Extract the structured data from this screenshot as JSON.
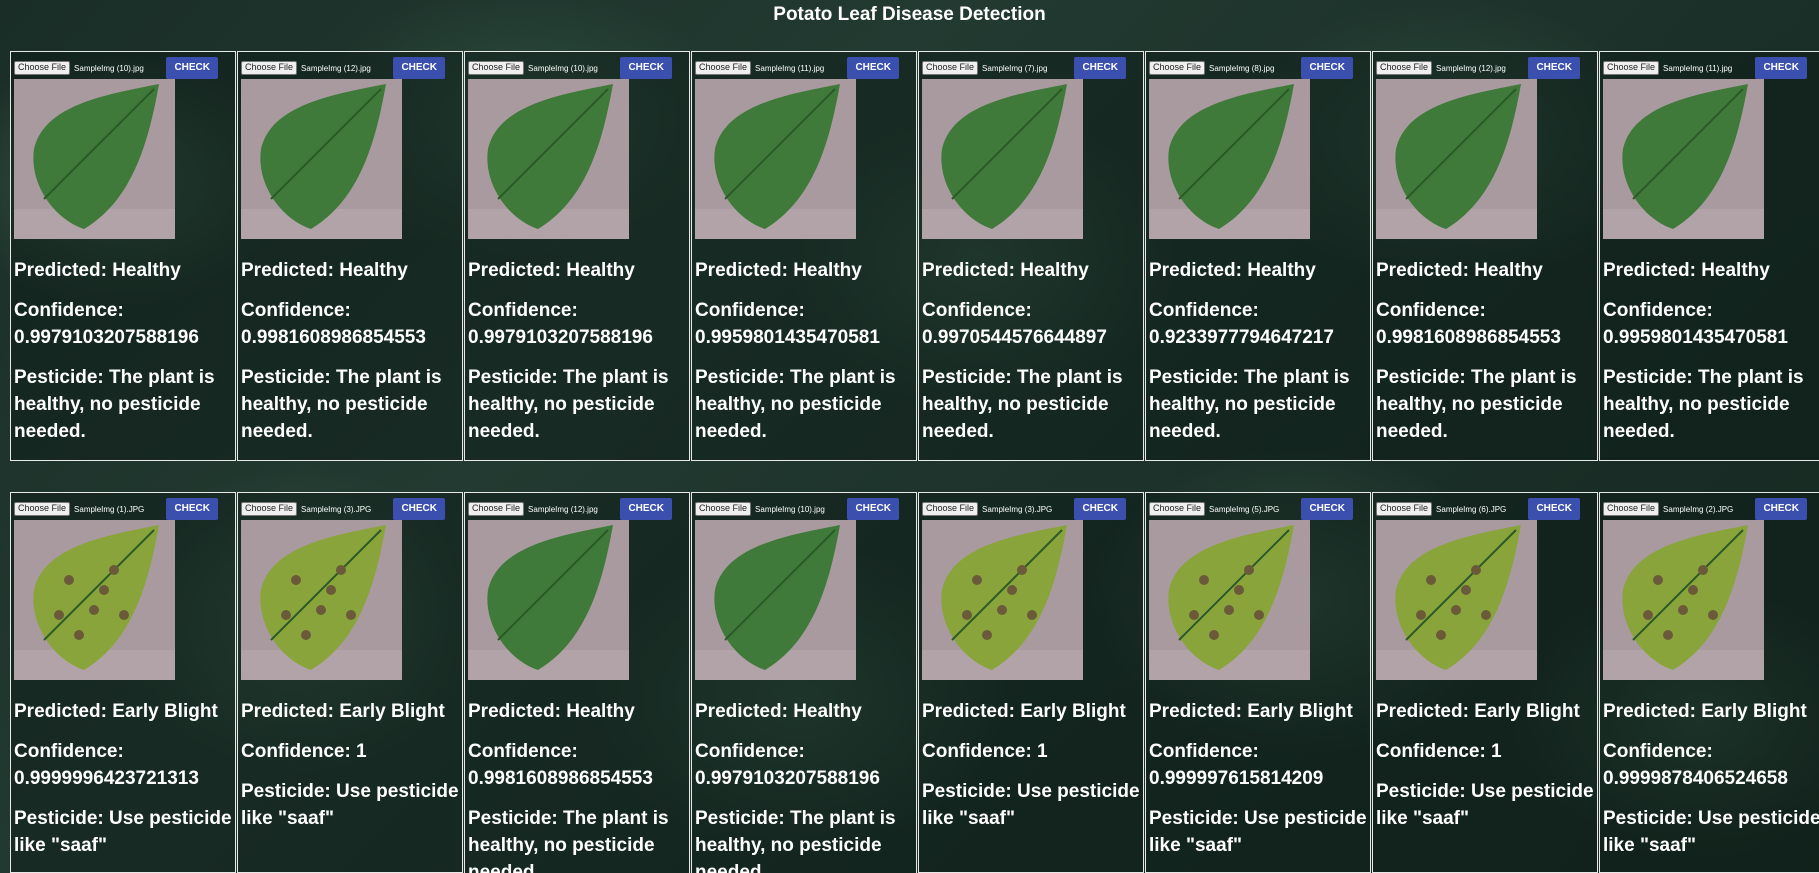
{
  "page_title": "Potato Leaf Disease Detection",
  "controls": {
    "choose_file_label": "Choose File",
    "check_label": "CHECK"
  },
  "labels": {
    "predicted_prefix": "Predicted: ",
    "confidence_prefix": "Confidence: ",
    "pesticide_prefix": "Pesticide: "
  },
  "colors": {
    "check_button": "#3a4fae",
    "healthy_leaf": "#3f7a3a",
    "blight_leaf": "#8aa43c",
    "background_surface": "#a89a9e"
  },
  "rows": [
    {
      "cards": [
        {
          "file": "SampleImg (10).jpg",
          "predicted": "Healthy",
          "confidence": "0.9979103207588196",
          "pesticide": "The plant is healthy, no pesticide needed.",
          "leaf_type": "healthy"
        },
        {
          "file": "SampleImg (12).jpg",
          "predicted": "Healthy",
          "confidence": "0.9981608986854553",
          "pesticide": "The plant is healthy, no pesticide needed.",
          "leaf_type": "healthy"
        },
        {
          "file": "SampleImg (10).jpg",
          "predicted": "Healthy",
          "confidence": "0.9979103207588196",
          "pesticide": "The plant is healthy, no pesticide needed.",
          "leaf_type": "healthy"
        },
        {
          "file": "SampleImg (11).jpg",
          "predicted": "Healthy",
          "confidence": "0.9959801435470581",
          "pesticide": "The plant is healthy, no pesticide needed.",
          "leaf_type": "healthy"
        },
        {
          "file": "SampleImg (7).jpg",
          "predicted": "Healthy",
          "confidence": "0.9970544576644897",
          "pesticide": "The plant is healthy, no pesticide needed.",
          "leaf_type": "healthy"
        },
        {
          "file": "SampleImg (8).jpg",
          "predicted": "Healthy",
          "confidence": "0.9233977794647217",
          "pesticide": "The plant is healthy, no pesticide needed.",
          "leaf_type": "healthy"
        },
        {
          "file": "SampleImg (12).jpg",
          "predicted": "Healthy",
          "confidence": "0.9981608986854553",
          "pesticide": "The plant is healthy, no pesticide needed.",
          "leaf_type": "healthy"
        },
        {
          "file": "SampleImg (11).jpg",
          "predicted": "Healthy",
          "confidence": "0.9959801435470581",
          "pesticide": "The plant is healthy, no pesticide needed.",
          "leaf_type": "healthy"
        }
      ]
    },
    {
      "cards": [
        {
          "file": "SampleImg (1).JPG",
          "predicted": "Early Blight",
          "confidence": "0.9999996423721313",
          "pesticide": "Use pesticide like \"saaf\"",
          "leaf_type": "blight"
        },
        {
          "file": "SampleImg (3).JPG",
          "predicted": "Early Blight",
          "confidence": "1",
          "pesticide": "Use pesticide like \"saaf\"",
          "leaf_type": "blight"
        },
        {
          "file": "SampleImg (12).jpg",
          "predicted": "Healthy",
          "confidence": "0.9981608986854553",
          "pesticide": "The plant is healthy, no pesticide needed.",
          "leaf_type": "healthy"
        },
        {
          "file": "SampleImg (10).jpg",
          "predicted": "Healthy",
          "confidence": "0.9979103207588196",
          "pesticide": "The plant is healthy, no pesticide needed.",
          "leaf_type": "healthy"
        },
        {
          "file": "SampleImg (3).JPG",
          "predicted": "Early Blight",
          "confidence": "1",
          "pesticide": "Use pesticide like \"saaf\"",
          "leaf_type": "blight"
        },
        {
          "file": "SampleImg (5).JPG",
          "predicted": "Early Blight",
          "confidence": "0.999997615814209",
          "pesticide": "Use pesticide like \"saaf\"",
          "leaf_type": "blight"
        },
        {
          "file": "SampleImg (6).JPG",
          "predicted": "Early Blight",
          "confidence": "1",
          "pesticide": "Use pesticide like \"saaf\"",
          "leaf_type": "blight"
        },
        {
          "file": "SampleImg (2).JPG",
          "predicted": "Early Blight",
          "confidence": "0.9999878406524658",
          "pesticide": "Use pesticide like \"saaf\"",
          "leaf_type": "blight"
        }
      ]
    }
  ]
}
